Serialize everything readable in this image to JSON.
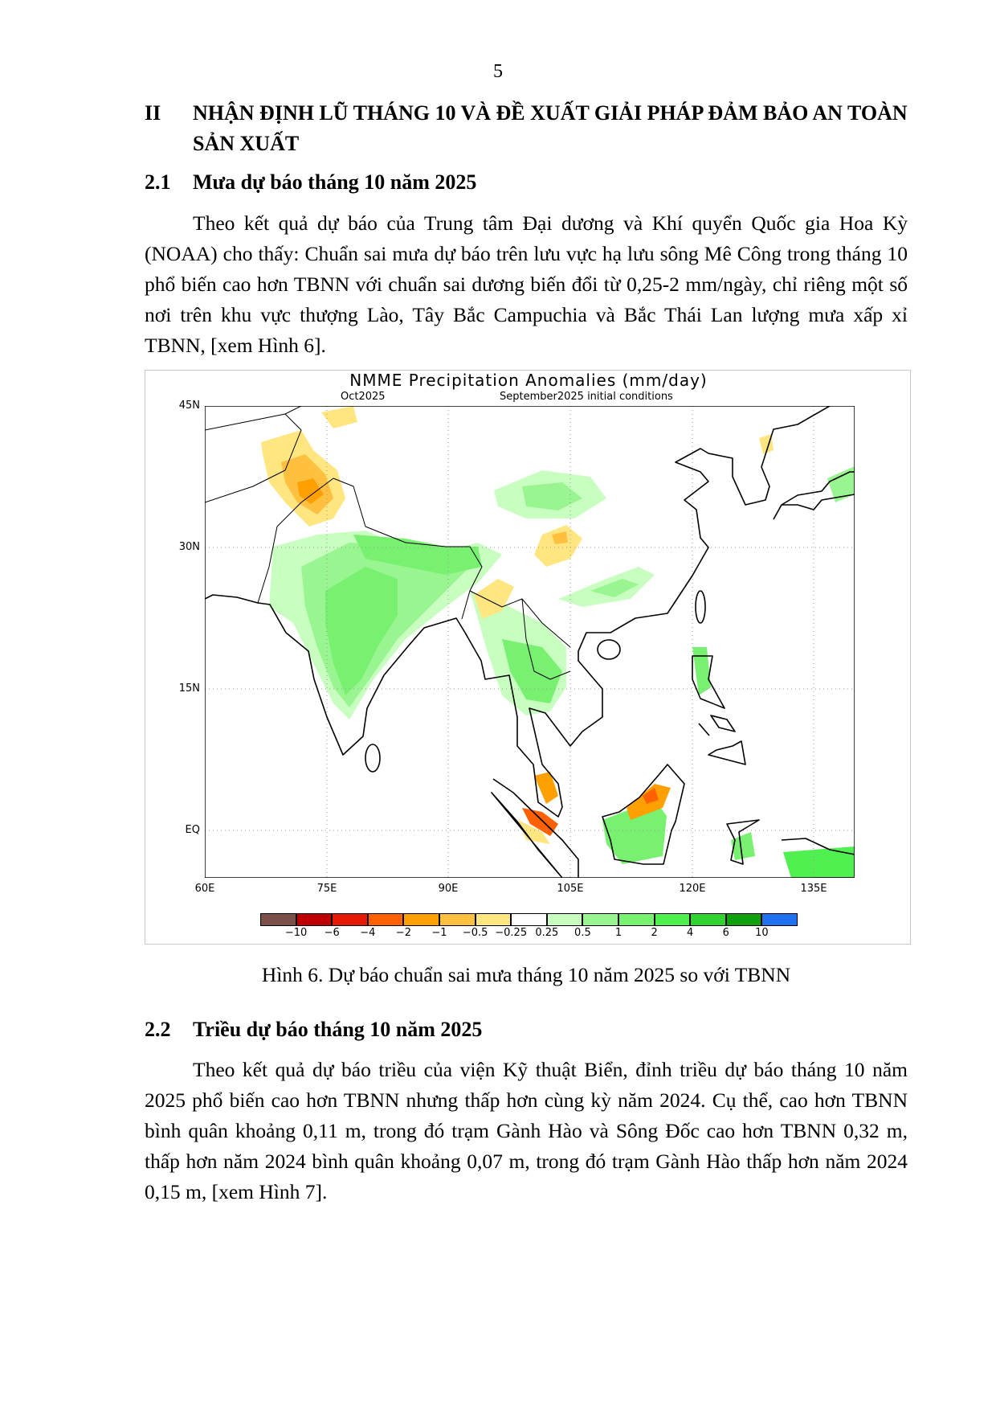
{
  "page_number": "5",
  "section": {
    "number": "II",
    "title": "NHẬN ĐỊNH LŨ THÁNG 10 VÀ ĐỀ XUẤT GIẢI PHÁP ĐẢM BẢO AN TOÀN SẢN XUẤT"
  },
  "sub1": {
    "number": "2.1",
    "title": "Mưa dự báo tháng 10 năm 2025"
  },
  "para1": "Theo kết quả dự báo của Trung tâm Đại dương và Khí quyển Quốc gia Hoa Kỳ (NOAA) cho thấy: Chuẩn sai mưa dự báo trên lưu vực hạ lưu sông Mê Công trong tháng 10 phổ biến cao hơn TBNN với chuẩn sai dương biến đổi từ 0,25-2 mm/ngày, chỉ riêng một số nơi trên khu vực thượng Lào, Tây Bắc Campuchia và Bắc Thái Lan lượng mưa xấp xỉ TBNN, [xem Hình 6].",
  "figure": {
    "title": "NMME Precipitation Anomalies (mm/day)",
    "subtitle_left": "Oct2025",
    "subtitle_right": "September2025 initial conditions",
    "lat_ticks": [
      "45N",
      "30N",
      "15N",
      "EQ"
    ],
    "lon_ticks": [
      "60E",
      "75E",
      "90E",
      "105E",
      "120E",
      "135E"
    ],
    "colorbar": {
      "labels": [
        "−10",
        "−6",
        "−4",
        "−2",
        "−1",
        "−0.5",
        "−0.25",
        "0.25",
        "0.5",
        "1",
        "2",
        "4",
        "6",
        "10"
      ],
      "colors": [
        "#7b5049",
        "#c00000",
        "#e51a00",
        "#ff6000",
        "#ffa000",
        "#ffc040",
        "#ffe680",
        "#ffffff",
        "#c8ffc0",
        "#98f590",
        "#78f070",
        "#50f050",
        "#32d232",
        "#10a010",
        "#2070f0"
      ]
    }
  },
  "caption": "Hình 6. Dự báo chuẩn sai mưa tháng 10 năm 2025 so với TBNN",
  "sub2": {
    "number": "2.2",
    "title": "Triều dự báo tháng 10 năm 2025"
  },
  "para2": "Theo kết quả dự báo triều của viện Kỹ thuật Biển, đỉnh triều dự báo tháng 10 năm 2025 phổ biến cao hơn TBNN nhưng thấp hơn cùng kỳ năm 2024. Cụ thể, cao hơn TBNN bình quân khoảng 0,11 m, trong đó trạm Gành Hào và Sông Đốc cao hơn TBNN 0,32 m, thấp hơn năm 2024 bình quân khoảng 0,07 m, trong đó trạm Gành Hào thấp hơn năm 2024 0,15 m, [xem Hình 7]."
}
